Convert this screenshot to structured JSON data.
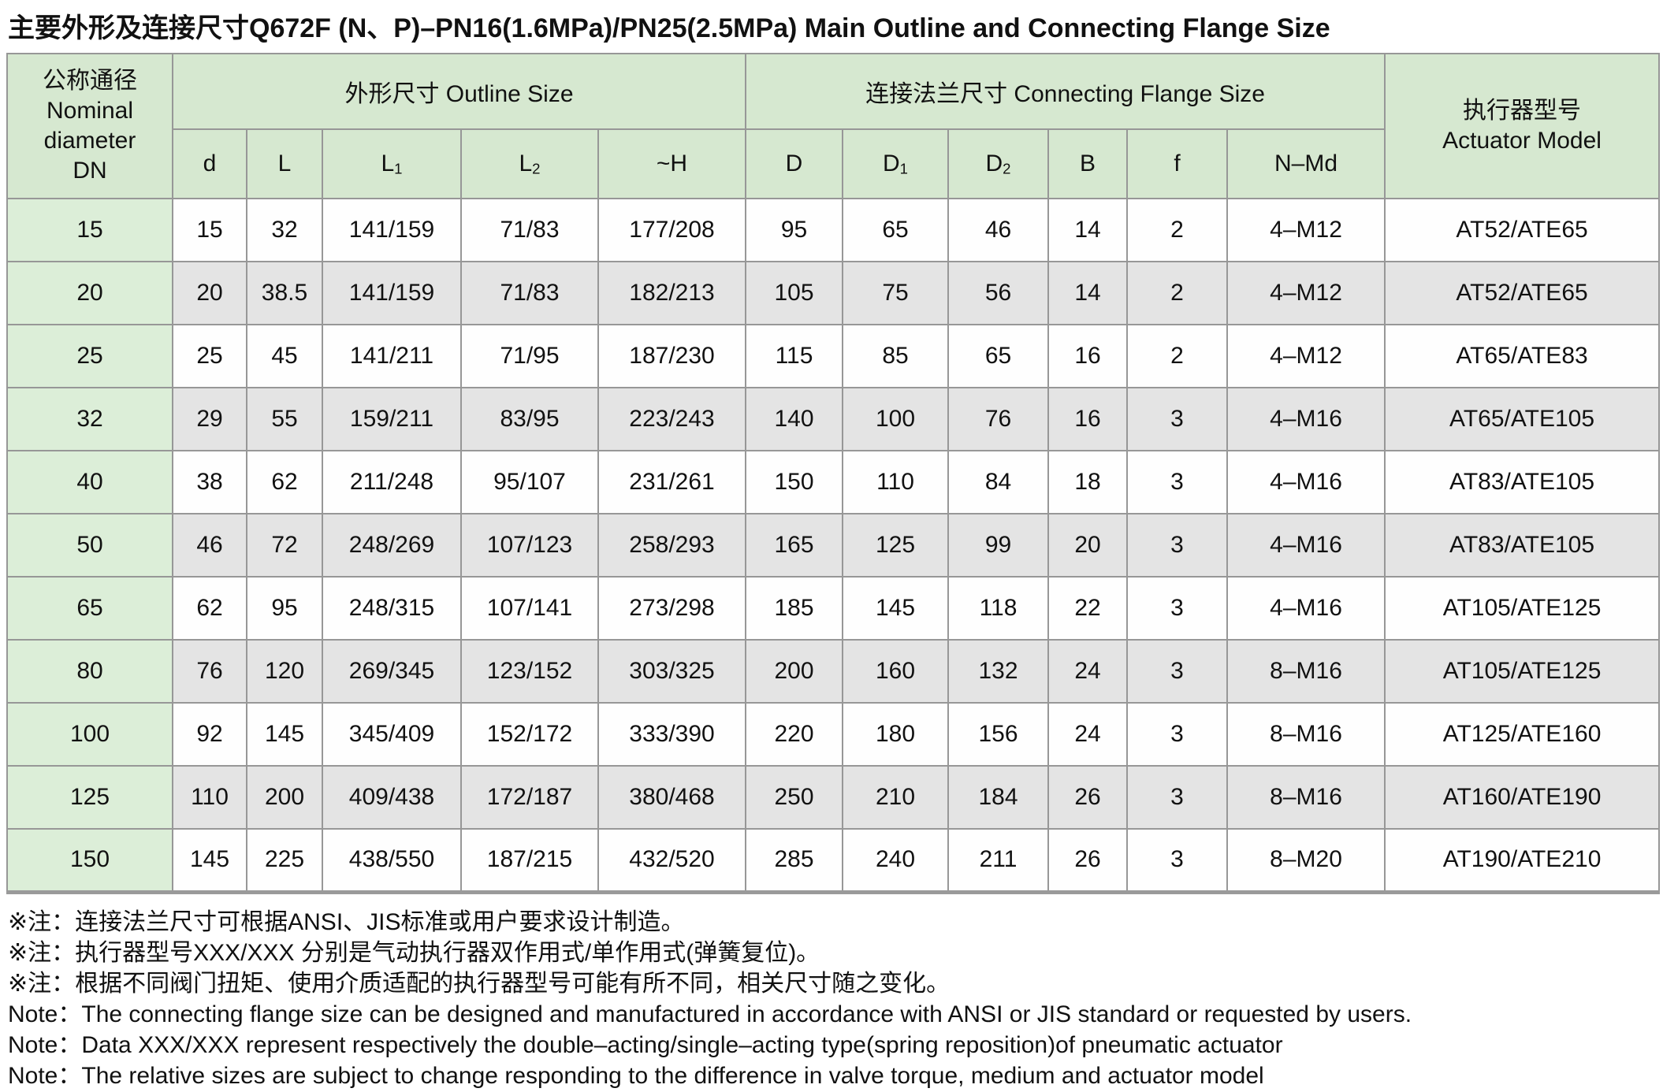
{
  "page": {
    "title": "主要外形及连接尺寸Q672F (N、P)–PN16(1.6MPa)/PN25(2.5MPa) Main Outline and Connecting Flange Size"
  },
  "table": {
    "group_headers": {
      "nominal_diameter": "公称通径\nNominal\ndiameter\nDN",
      "outline_size": "外形尺寸 Outline Size",
      "connecting_flange_size": "连接法兰尺寸 Connecting Flange Size",
      "actuator_model": "执行器型号\nActuator Model"
    },
    "sub_headers": [
      {
        "base": "d"
      },
      {
        "base": "L"
      },
      {
        "base": "L",
        "sub": "1"
      },
      {
        "base": "L",
        "sub": "2"
      },
      {
        "base": "~H"
      },
      {
        "base": "D"
      },
      {
        "base": "D",
        "sub": "1"
      },
      {
        "base": "D",
        "sub": "2"
      },
      {
        "base": "B"
      },
      {
        "base": "f"
      },
      {
        "base": "N–Md"
      }
    ],
    "rows": [
      {
        "dn": "15",
        "cells": [
          "15",
          "32",
          "141/159",
          "71/83",
          "177/208",
          "95",
          "65",
          "46",
          "14",
          "2",
          "4–M12",
          "AT52/ATE65"
        ]
      },
      {
        "dn": "20",
        "cells": [
          "20",
          "38.5",
          "141/159",
          "71/83",
          "182/213",
          "105",
          "75",
          "56",
          "14",
          "2",
          "4–M12",
          "AT52/ATE65"
        ]
      },
      {
        "dn": "25",
        "cells": [
          "25",
          "45",
          "141/211",
          "71/95",
          "187/230",
          "115",
          "85",
          "65",
          "16",
          "2",
          "4–M12",
          "AT65/ATE83"
        ]
      },
      {
        "dn": "32",
        "cells": [
          "29",
          "55",
          "159/211",
          "83/95",
          "223/243",
          "140",
          "100",
          "76",
          "16",
          "3",
          "4–M16",
          "AT65/ATE105"
        ]
      },
      {
        "dn": "40",
        "cells": [
          "38",
          "62",
          "211/248",
          "95/107",
          "231/261",
          "150",
          "110",
          "84",
          "18",
          "3",
          "4–M16",
          "AT83/ATE105"
        ]
      },
      {
        "dn": "50",
        "cells": [
          "46",
          "72",
          "248/269",
          "107/123",
          "258/293",
          "165",
          "125",
          "99",
          "20",
          "3",
          "4–M16",
          "AT83/ATE105"
        ]
      },
      {
        "dn": "65",
        "cells": [
          "62",
          "95",
          "248/315",
          "107/141",
          "273/298",
          "185",
          "145",
          "118",
          "22",
          "3",
          "4–M16",
          "AT105/ATE125"
        ]
      },
      {
        "dn": "80",
        "cells": [
          "76",
          "120",
          "269/345",
          "123/152",
          "303/325",
          "200",
          "160",
          "132",
          "24",
          "3",
          "8–M16",
          "AT105/ATE125"
        ]
      },
      {
        "dn": "100",
        "cells": [
          "92",
          "145",
          "345/409",
          "152/172",
          "333/390",
          "220",
          "180",
          "156",
          "24",
          "3",
          "8–M16",
          "AT125/ATE160"
        ]
      },
      {
        "dn": "125",
        "cells": [
          "110",
          "200",
          "409/438",
          "172/187",
          "380/468",
          "250",
          "210",
          "184",
          "26",
          "3",
          "8–M16",
          "AT160/ATE190"
        ]
      },
      {
        "dn": "150",
        "cells": [
          "145",
          "225",
          "438/550",
          "187/215",
          "432/520",
          "285",
          "240",
          "211",
          "26",
          "3",
          "8–M20",
          "AT190/ATE210"
        ]
      }
    ]
  },
  "notes": [
    "※注：连接法兰尺寸可根据ANSI、JIS标准或用户要求设计制造。",
    "※注：执行器型号XXX/XXX 分别是气动执行器双作用式/单作用式(弹簧复位)。",
    "※注：根据不同阀门扭矩、使用介质适配的执行器型号可能有所不同，相关尺寸随之变化。",
    "Note：The connecting flange size can be designed and manufactured in accordance with ANSI or JIS standard or requested by users.",
    "Note：Data XXX/XXX represent respectively the double–acting/single–acting type(spring reposition)of pneumatic actuator",
    "Note：The relative sizes are subject to change responding to the difference in valve torque, medium and actuator model"
  ],
  "colors": {
    "header_green": "#d6e8d0",
    "dn_column_green": "#dceed8",
    "stripe_gray": "#e4e4e4",
    "grid_line": "#979797"
  }
}
